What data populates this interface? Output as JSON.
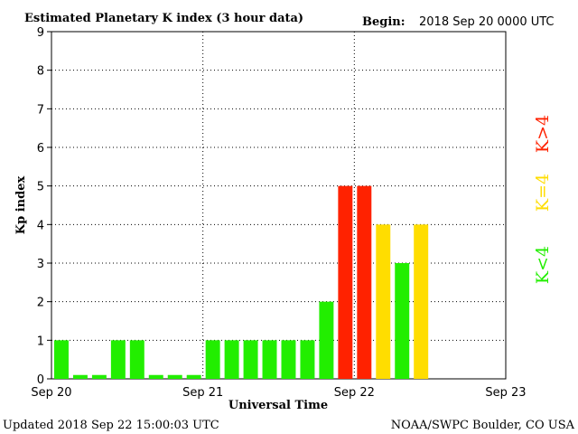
{
  "header": {
    "title": "Estimated Planetary K index (3 hour data)",
    "begin_label": "Begin:",
    "begin_value": "2018 Sep 20 0000 UTC"
  },
  "footer": {
    "updated": "Updated 2018 Sep 22 15:00:03 UTC",
    "source": "NOAA/SWPC Boulder, CO USA"
  },
  "legend": [
    {
      "label": "K>4",
      "color": "#ff2200"
    },
    {
      "label": "K=4",
      "color": "#ffdd00"
    },
    {
      "label": "K<4",
      "color": "#22ee00"
    }
  ],
  "chart_data": {
    "type": "bar",
    "title": "Estimated Planetary K index (3 hour data)",
    "xlabel": "Universal Time",
    "ylabel": "Kp index",
    "ylim": [
      0,
      9
    ],
    "yticks": [
      0,
      1,
      2,
      3,
      4,
      5,
      6,
      7,
      8,
      9
    ],
    "xticks": [
      "Sep 20",
      "Sep 21",
      "Sep 22",
      "Sep 23"
    ],
    "bin_hours": 3,
    "bins_total": 24,
    "grid": true,
    "values": [
      1,
      0.1,
      0.1,
      1,
      1,
      0.1,
      0.1,
      0.1,
      1,
      1,
      1,
      1,
      1,
      1,
      2,
      5,
      5,
      4,
      3,
      4
    ],
    "colors": {
      "below": "#22ee00",
      "equal": "#ffdd00",
      "above": "#ff2200"
    }
  }
}
